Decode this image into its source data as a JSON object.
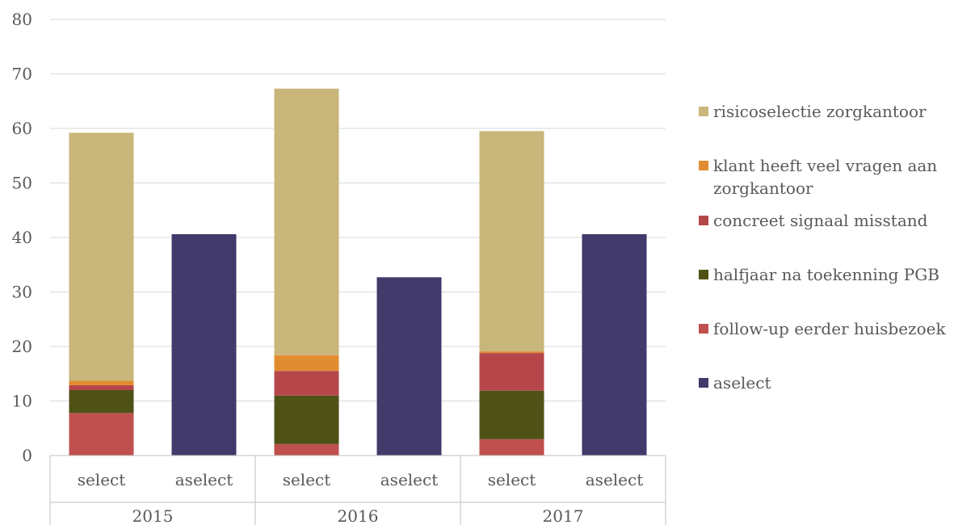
{
  "chart_data": {
    "type": "bar",
    "stacked": true,
    "grid": true,
    "legend_position": "right",
    "ylim": [
      0,
      80
    ],
    "yticks": [
      0,
      10,
      20,
      30,
      40,
      50,
      60,
      70,
      80
    ],
    "ytick_labels": [
      "0",
      "10",
      "20",
      "30",
      "40",
      "50",
      "60",
      "70",
      "80"
    ],
    "groups": [
      {
        "label": "2015",
        "categories": [
          "select",
          "aselect"
        ]
      },
      {
        "label": "2016",
        "categories": [
          "select",
          "aselect"
        ]
      },
      {
        "label": "2017",
        "categories": [
          "select",
          "aselect"
        ]
      }
    ],
    "categories": [
      "select",
      "aselect",
      "select",
      "aselect",
      "select",
      "aselect"
    ],
    "series": [
      {
        "name": "aselect",
        "color": "#413a6b",
        "values": [
          0,
          40.6,
          0,
          32.7,
          0,
          40.6
        ]
      },
      {
        "name": "follow-up eerder huisbezoek",
        "color": "#c0504d",
        "values": [
          7.8,
          0,
          2.1,
          0,
          3.0,
          0
        ]
      },
      {
        "name": "halfjaar na toekenning PGB",
        "color": "#4f5217",
        "values": [
          4.2,
          0,
          8.9,
          0,
          8.9,
          0
        ]
      },
      {
        "name": "concreet signaal misstand",
        "color": "#b5474b",
        "values": [
          0.9,
          0,
          4.5,
          0,
          6.9,
          0
        ]
      },
      {
        "name": "klant heeft veel vragen aan zorgkantoor",
        "color": "#e18c30",
        "values": [
          0.8,
          0,
          2.9,
          0,
          0.3,
          0
        ]
      },
      {
        "name": "risicoselectie zorgkantoor",
        "color": "#c8b67a",
        "values": [
          45.5,
          0,
          48.9,
          0,
          40.4,
          0
        ]
      }
    ],
    "legend": [
      {
        "name": "risicoselectie zorgkantoor",
        "color": "#c8b67a",
        "lines": [
          "risicoselectie zorgkantoor"
        ]
      },
      {
        "name": "klant heeft veel vragen aan zorgkantoor",
        "color": "#e18c30",
        "lines": [
          "klant heeft veel vragen aan",
          "zorgkantoor"
        ]
      },
      {
        "name": "concreet signaal misstand",
        "color": "#b5474b",
        "lines": [
          "concreet signaal misstand"
        ]
      },
      {
        "name": "halfjaar na toekenning PGB",
        "color": "#4f5217",
        "lines": [
          "halfjaar na toekenning PGB"
        ]
      },
      {
        "name": "follow-up eerder huisbezoek",
        "color": "#c0504d",
        "lines": [
          "follow-up eerder huisbezoek"
        ]
      },
      {
        "name": "aselect",
        "color": "#413a6b",
        "lines": [
          "aselect"
        ]
      }
    ],
    "gridline_color": "#d9d9d9",
    "axis_color": "#bfbfbf"
  }
}
